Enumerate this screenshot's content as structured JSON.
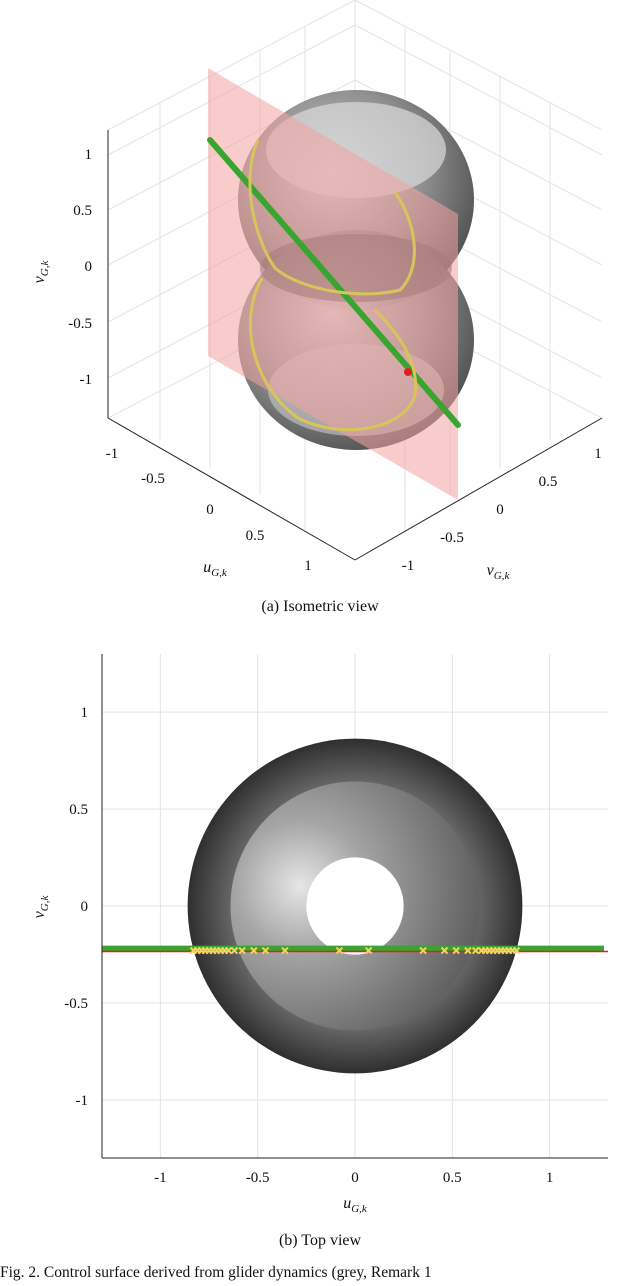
{
  "chart_data": [
    {
      "type": "surface3d",
      "caption": "(a) Isometric view",
      "zlabel": "v_{G,k}",
      "xlabel": "u_{G,k}",
      "ylabel": "v_{G,k}",
      "z_ticks": [
        "1",
        "0.5",
        "0",
        "-0.5",
        "-1"
      ],
      "x_ticks": [
        "-1",
        "-0.5",
        "0",
        "0.5",
        "1"
      ],
      "y_ticks": [
        "1",
        "0.5",
        "0",
        "-0.5",
        "-1"
      ],
      "grid": true,
      "series": [
        {
          "color": "#6b6b6b"
        },
        {
          "color": "#f2a0a0"
        },
        {
          "color": "#3aa52e"
        },
        {
          "color": "#f5d35c"
        },
        {
          "color": "#e02020"
        }
      ]
    },
    {
      "type": "surface_topview",
      "caption": "(b) Top view",
      "xlabel": "u_{G,k}",
      "ylabel": "v_{G,k}",
      "xlim": [
        -1.3,
        1.3
      ],
      "ylim": [
        -1.3,
        1.3
      ],
      "x_ticks": [
        -1,
        -0.5,
        0,
        0.5,
        1
      ],
      "y_ticks": [
        1,
        0.5,
        0,
        -0.5,
        -1
      ],
      "grid": true,
      "surface": {
        "outer_radius": 0.86,
        "mid_radius": 0.64,
        "hole_radius": 0.25
      },
      "line_v": -0.22,
      "red_line_v": -0.235,
      "markers_u": [
        -0.83,
        -0.81,
        -0.79,
        -0.77,
        -0.75,
        -0.73,
        -0.71,
        -0.69,
        -0.67,
        -0.65,
        -0.62,
        -0.58,
        -0.52,
        -0.46,
        -0.36,
        -0.08,
        0.07,
        0.35,
        0.46,
        0.52,
        0.58,
        0.62,
        0.65,
        0.67,
        0.69,
        0.71,
        0.73,
        0.75,
        0.77,
        0.79,
        0.81,
        0.83
      ],
      "series": [
        {
          "color": "#3aa52e"
        },
        {
          "color": "#e02020"
        },
        {
          "color": "#f5d35c"
        }
      ]
    }
  ],
  "figure_caption": "Fig. 2.   Control surface derived from glider dynamics (grey, Remark 1"
}
